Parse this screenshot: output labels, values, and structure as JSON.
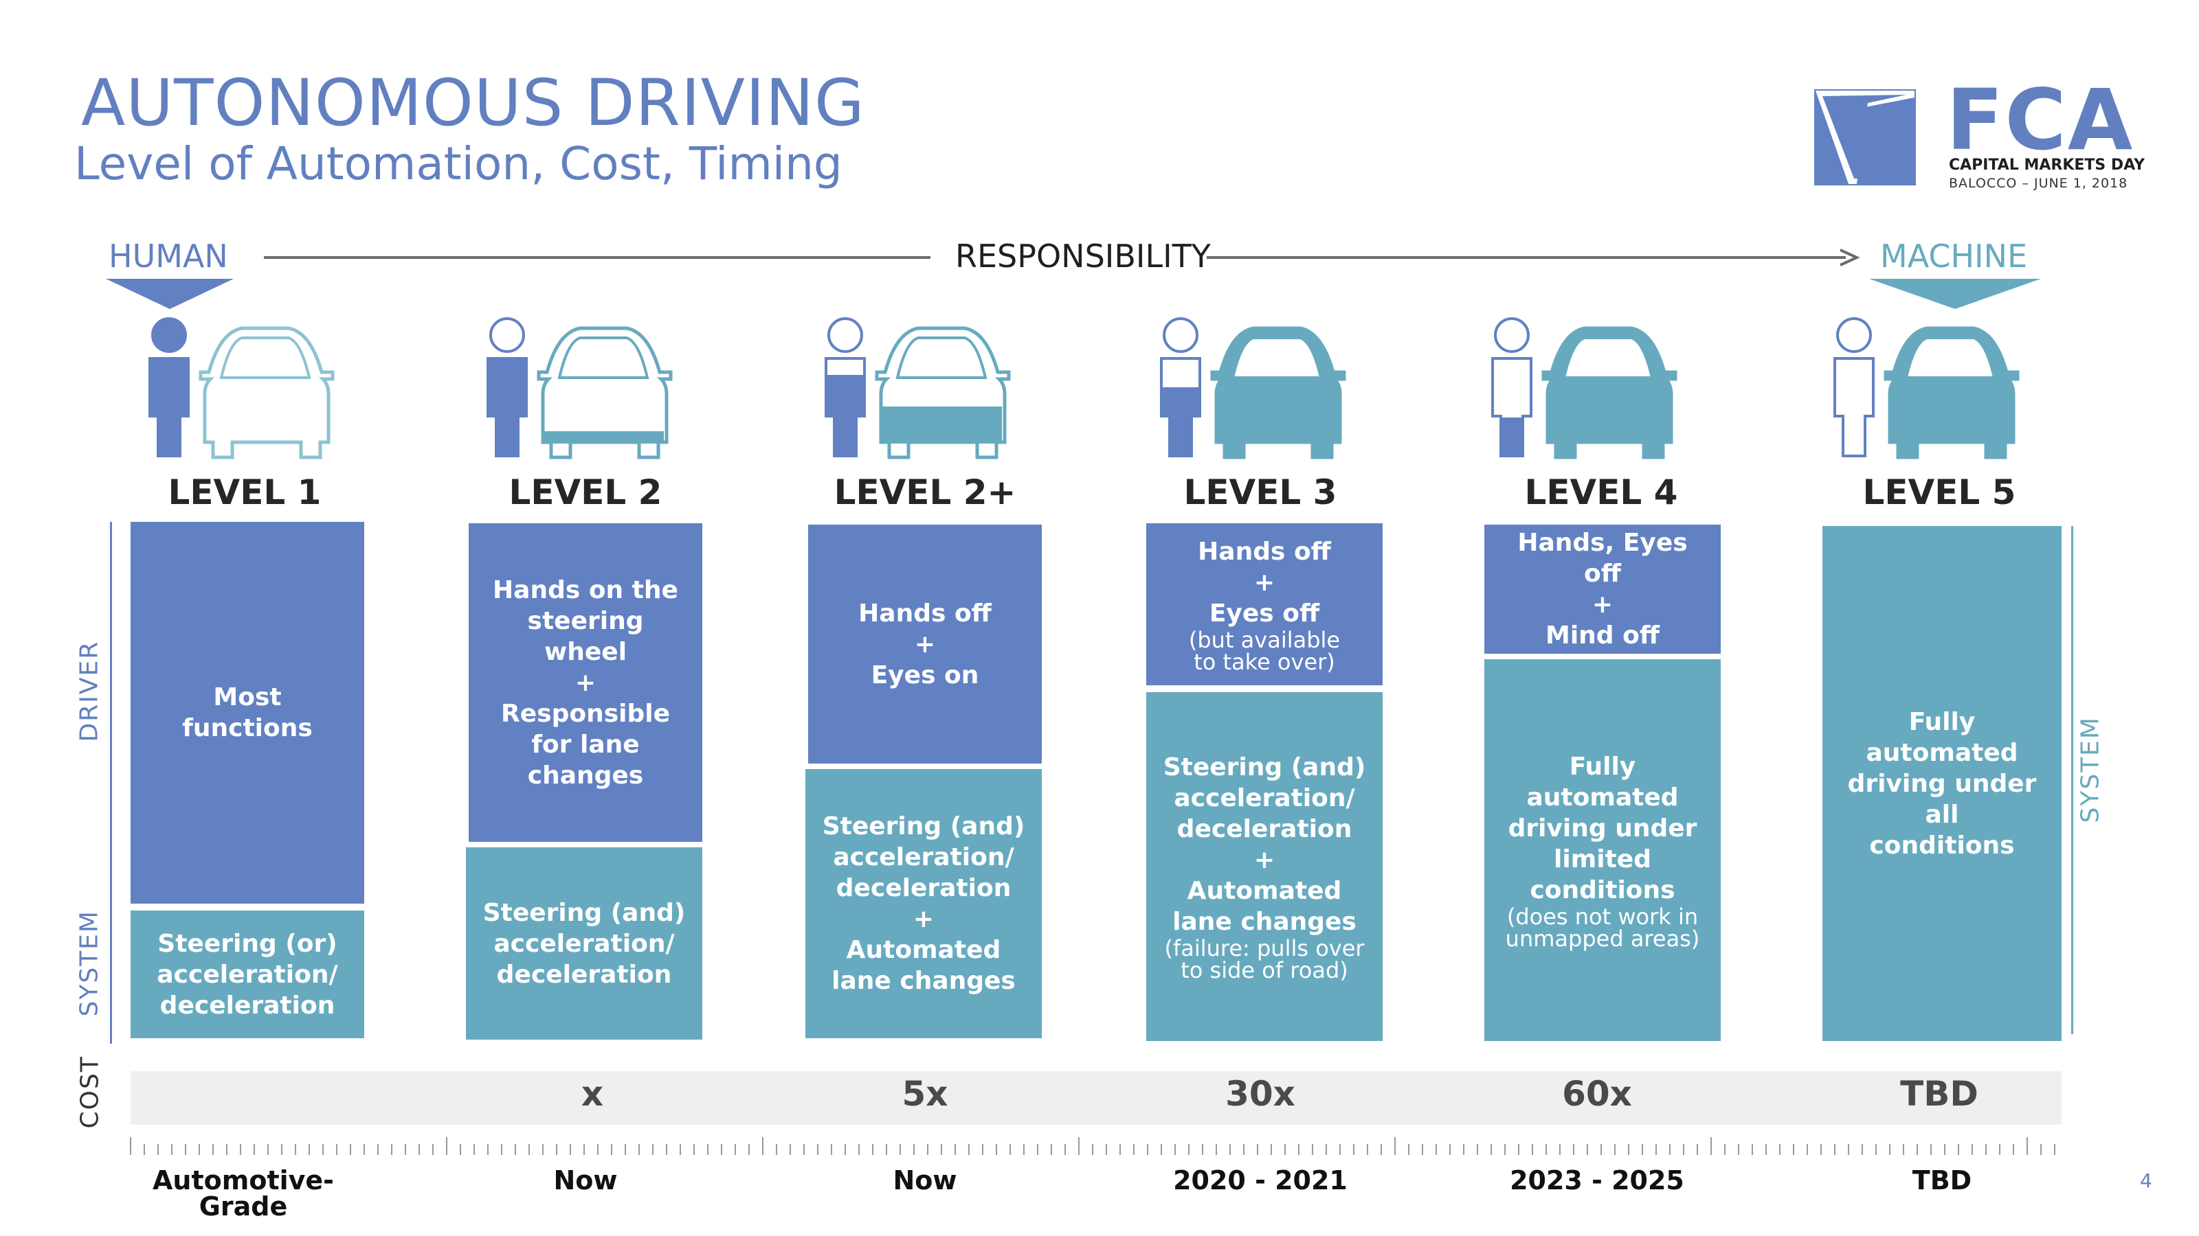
{
  "title": "AUTONOMOUS DRIVING",
  "subtitle": "Level of Automation, Cost, Timing",
  "logo": {
    "wordmark": "FCA",
    "line1": "CAPITAL MARKETS DAY",
    "line2": "BALOCCO – JUNE 1, 2018"
  },
  "responsibility": {
    "left": "HUMAN",
    "center": "RESPONSIBILITY",
    "right": "MACHINE"
  },
  "side_labels": {
    "driver": "DRIVER",
    "system_left": "SYSTEM",
    "system_right": "SYSTEM",
    "cost": "COST"
  },
  "colors": {
    "human": "#6281c3",
    "machine": "#67aabf",
    "cost_bar": "#efefef"
  },
  "levels": [
    {
      "name": "LEVEL 1",
      "driver": {
        "lines": [
          "Most",
          "functions"
        ],
        "note": []
      },
      "system": {
        "lines": [
          "Steering (or)",
          "acceleration/",
          "deceleration"
        ],
        "note": []
      },
      "cost": "",
      "timing": "Automotive-Grade"
    },
    {
      "name": "LEVEL 2",
      "driver": {
        "lines": [
          "Hands on the",
          "steering wheel",
          "+",
          "Responsible",
          "for lane changes"
        ],
        "note": []
      },
      "system": {
        "lines": [
          "Steering (and)",
          "acceleration/",
          "deceleration"
        ],
        "note": []
      },
      "cost": "x",
      "timing": "Now"
    },
    {
      "name": "LEVEL 2+",
      "driver": {
        "lines": [
          "Hands off",
          "+",
          "Eyes on"
        ],
        "note": []
      },
      "system": {
        "lines": [
          "Steering (and)",
          "acceleration/",
          "deceleration",
          "+",
          "Automated",
          "lane changes"
        ],
        "note": []
      },
      "cost": "5x",
      "timing": "Now"
    },
    {
      "name": "LEVEL 3",
      "driver": {
        "lines": [
          "Hands off",
          "+",
          "Eyes off"
        ],
        "note": [
          "(but available",
          "to take over)"
        ]
      },
      "system": {
        "lines": [
          "Steering (and)",
          "acceleration/",
          "deceleration",
          "+",
          "Automated",
          "lane changes"
        ],
        "note": [
          "(failure: pulls over",
          "to side of road)"
        ]
      },
      "cost": "30x",
      "timing": "2020 - 2021"
    },
    {
      "name": "LEVEL 4",
      "driver": {
        "lines": [
          "Hands, Eyes off",
          "+",
          "Mind off"
        ],
        "note": []
      },
      "system": {
        "lines": [
          "Fully",
          "automated",
          "driving under",
          "limited",
          "conditions"
        ],
        "note": [
          "(does not work in",
          "unmapped areas)"
        ]
      },
      "cost": "60x",
      "timing": "2023 - 2025"
    },
    {
      "name": "LEVEL 5",
      "driver": {
        "lines": [],
        "note": []
      },
      "system": {
        "lines": [
          "Fully automated",
          "driving under all",
          "conditions"
        ],
        "note": []
      },
      "cost": "TBD",
      "timing": "TBD"
    }
  ],
  "page_number": "4"
}
